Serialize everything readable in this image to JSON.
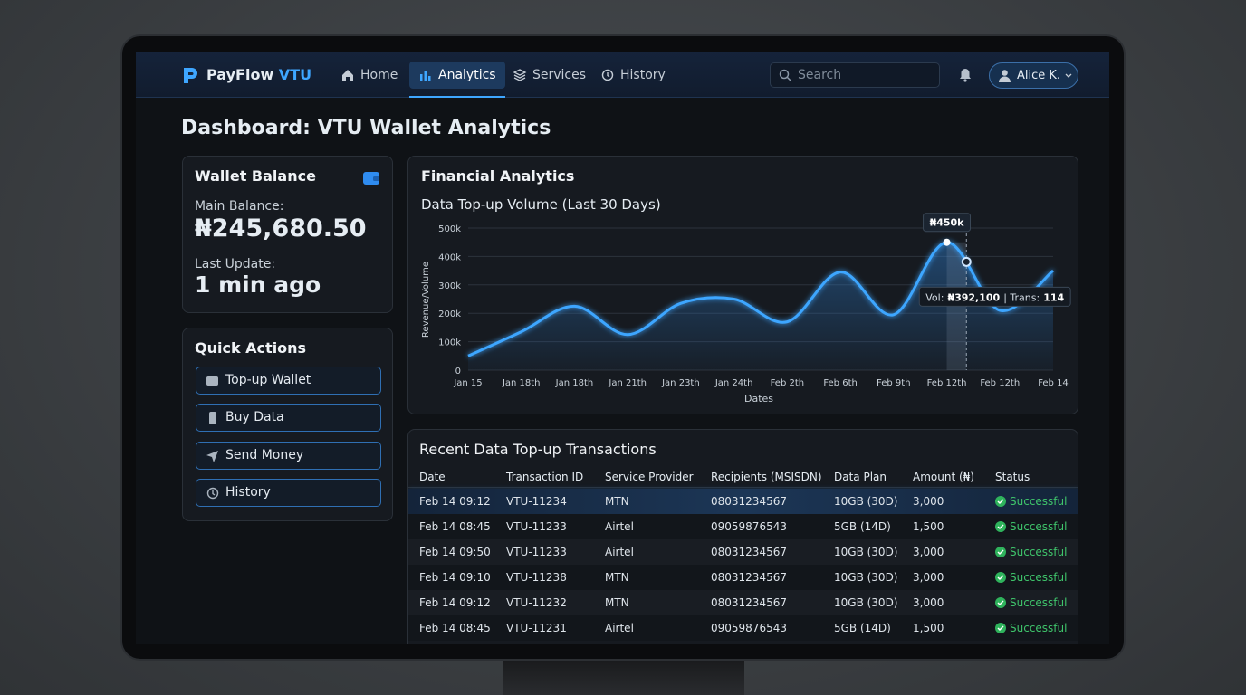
{
  "nav": {
    "brand": "PayFlow",
    "brand_accent": "VTU",
    "items": [
      "Home",
      "Analytics",
      "Services",
      "History"
    ],
    "active": 1,
    "search_placeholder": "Search",
    "user": "Alice K."
  },
  "page_title": "Dashboard: VTU Wallet Analytics",
  "wallet": {
    "title": "Wallet Balance",
    "main_label": "Main Balance:",
    "main_value": "₦245,680.50",
    "update_label": "Last Update:",
    "update_value": "1 min ago"
  },
  "quick_actions": {
    "title": "Quick Actions",
    "items": [
      "Top-up Wallet",
      "Buy Data",
      "Send Money",
      "History"
    ]
  },
  "chart_data": {
    "type": "line",
    "title": "Financial Analytics",
    "subtitle": "Data Top-up Volume (Last 30 Days)",
    "x_label": "Dates",
    "y_label": "Revenue/Volume",
    "categories": [
      "Jan 15",
      "Jan 18th",
      "Jan 18th",
      "Jan 21th",
      "Jan 23th",
      "Jan 24th",
      "Feb 2th",
      "Feb 6th",
      "Feb 9th",
      "Feb 12th",
      "Feb 12th",
      "Feb 14"
    ],
    "values": [
      50000,
      135000,
      225000,
      125000,
      235000,
      250000,
      170000,
      345000,
      195000,
      450000,
      210000,
      350000
    ],
    "color": "#3ea6ff",
    "ylim": [
      0,
      500000
    ],
    "yticks": [
      0,
      {
        "value": 100000,
        "label": "100k"
      },
      {
        "value": 200000,
        "label": "200k"
      },
      {
        "value": 300000,
        "label": "300k"
      },
      {
        "value": 400000,
        "label": "400k"
      },
      {
        "value": 500000,
        "label": "500k"
      }
    ],
    "grid": true,
    "annotations": [
      {
        "text": "₦450k"
      }
    ],
    "tooltip": {
      "vol_label": "Vol:",
      "vol": "₦392,100",
      "sep": "| Trans:",
      "trans": "114"
    }
  },
  "table": {
    "title": "Recent Data Top-up Transactions",
    "columns": [
      "Date",
      "Transaction ID",
      "Service Provider",
      "Recipients (MSISDN)",
      "Data Plan",
      "Amount (₦)",
      "Status"
    ],
    "rows": [
      [
        "Feb 14 09:12",
        "VTU-11234",
        "MTN",
        "08031234567",
        "10GB (30D)",
        "3,000",
        "Successful"
      ],
      [
        "Feb 14 08:45",
        "VTU-11233",
        "Airtel",
        "09059876543",
        "5GB (14D)",
        "1,500",
        "Successful"
      ],
      [
        "Feb 14 09:50",
        "VTU-11233",
        "Airtel",
        "08031234567",
        "10GB (30D)",
        "3,000",
        "Successful"
      ],
      [
        "Feb 14 09:10",
        "VTU-11238",
        "MTN",
        "08031234567",
        "10GB (30D)",
        "3,000",
        "Successful"
      ],
      [
        "Feb 14 09:12",
        "VTU-11232",
        "MTN",
        "08031234567",
        "10GB (30D)",
        "3,000",
        "Successful"
      ],
      [
        "Feb 14 08:45",
        "VTU-11231",
        "Airtel",
        "09059876543",
        "5GB (14D)",
        "1,500",
        "Successful"
      ]
    ]
  }
}
